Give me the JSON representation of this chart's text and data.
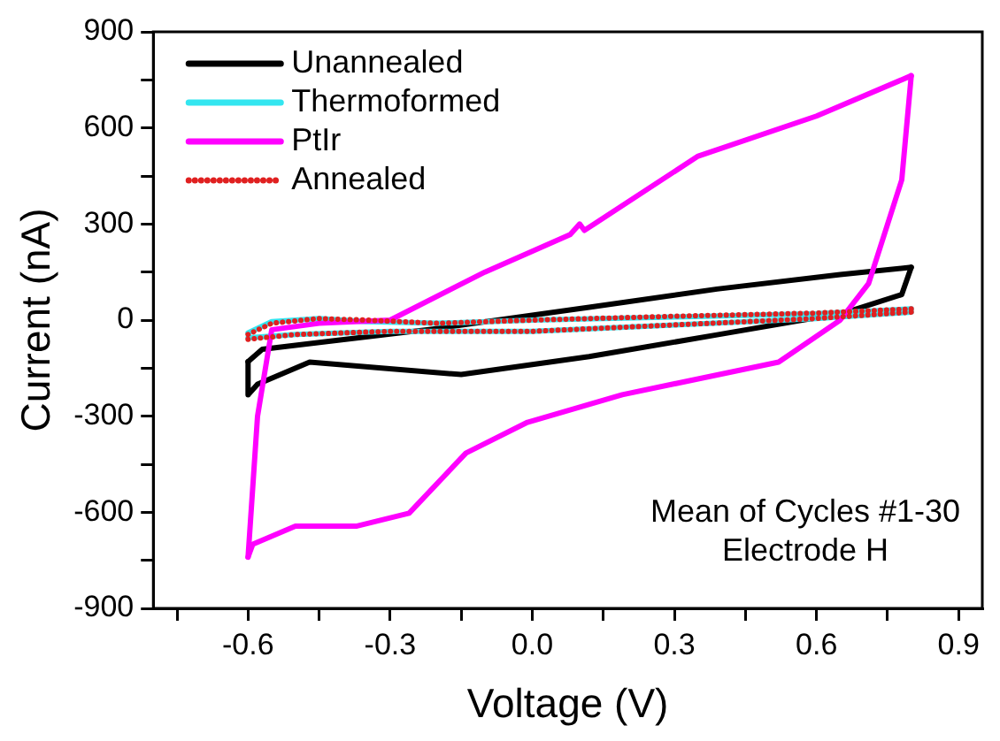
{
  "chart_data": {
    "type": "line",
    "xlabel": "Voltage (V)",
    "ylabel": "Current (nA)",
    "xlim": [
      -0.8,
      0.95
    ],
    "ylim": [
      -900,
      900
    ],
    "xticks": [
      {
        "value": -0.75,
        "label": null
      },
      -0.6,
      {
        "value": -0.45,
        "label": null
      },
      -0.3,
      {
        "value": -0.15,
        "label": null
      },
      {
        "value": 0,
        "label": "0.0"
      },
      {
        "value": 0.15,
        "label": null
      },
      0.3,
      {
        "value": 0.45,
        "label": null
      },
      0.6,
      {
        "value": 0.75,
        "label": null
      },
      0.9
    ],
    "yticks": [
      -900,
      {
        "value": -750,
        "label": null
      },
      -600,
      {
        "value": -450,
        "label": null
      },
      -300,
      {
        "value": -150,
        "label": null
      },
      0,
      {
        "value": 150,
        "label": null
      },
      300,
      {
        "value": 450,
        "label": null
      },
      600,
      {
        "value": 750,
        "label": null
      },
      900
    ],
    "grid": false,
    "legend": "top left",
    "marker": "none",
    "annotations": [
      "Mean of Cycles #1-30",
      "Electrode H"
    ],
    "series": [
      {
        "name": "Unannealed",
        "color": "#000000",
        "line_style": "solid",
        "x": [
          -0.6,
          -0.57,
          -0.41,
          -0.21,
          0.12,
          0.39,
          0.65,
          0.8
        ],
        "values": [
          -130,
          -91,
          -63,
          -28,
          40,
          97,
          142,
          165
        ]
      },
      {
        "color": "#000000",
        "line_style": "solid",
        "x": [
          -0.6,
          -0.6,
          -0.58,
          -0.47,
          -0.15,
          0.12,
          0.39,
          0.66,
          0.78,
          0.8
        ],
        "values": [
          -130,
          -233,
          -200,
          -131,
          -170,
          -114,
          -46,
          23,
          80,
          165
        ]
      },
      {
        "name": "Thermoformed",
        "color": "#33e6f0",
        "line_style": "solid",
        "x": [
          -0.6,
          -0.55,
          -0.45,
          -0.35,
          -0.2,
          0.0,
          0.3,
          0.6,
          0.8
        ],
        "values": [
          -40,
          -5,
          5,
          -5,
          -10,
          0,
          10,
          20,
          35
        ]
      },
      {
        "color": "#33e6f0",
        "line_style": "solid",
        "x": [
          -0.6,
          -0.5,
          -0.3,
          0.0,
          0.3,
          0.6,
          0.8
        ],
        "values": [
          -55,
          -45,
          -35,
          -35,
          -15,
          5,
          25
        ]
      },
      {
        "name": "PtIr",
        "color": "#ff00ff",
        "line_style": "solid",
        "x": [
          -0.6,
          -0.58,
          -0.55,
          -0.45,
          -0.3,
          -0.1,
          0.08,
          0.1,
          0.11,
          0.35,
          0.6,
          0.8
        ],
        "values": [
          -740,
          -300,
          -30,
          -10,
          0,
          150,
          267,
          300,
          280,
          512,
          637,
          763
        ]
      },
      {
        "color": "#ff00ff",
        "line_style": "solid",
        "x": [
          -0.6,
          -0.59,
          -0.5,
          -0.37,
          -0.26,
          -0.14,
          -0.01,
          0.19,
          0.52,
          0.65,
          0.71,
          0.78,
          0.8
        ],
        "values": [
          -740,
          -700,
          -643,
          -643,
          -603,
          -415,
          -319,
          -233,
          -131,
          0,
          114,
          438,
          763
        ]
      },
      {
        "name": "Annealed",
        "color": "#e02020",
        "line_style": "dotted",
        "x": [
          -0.6,
          -0.55,
          -0.45,
          -0.35,
          -0.2,
          0.0,
          0.3,
          0.6,
          0.8
        ],
        "values": [
          -45,
          -10,
          5,
          0,
          -10,
          0,
          12,
          22,
          35
        ]
      },
      {
        "color": "#e02020",
        "line_style": "dotted",
        "x": [
          -0.6,
          -0.5,
          -0.3,
          0.0,
          0.3,
          0.6,
          0.8
        ],
        "values": [
          -60,
          -45,
          -35,
          -35,
          -15,
          5,
          25
        ]
      }
    ]
  }
}
